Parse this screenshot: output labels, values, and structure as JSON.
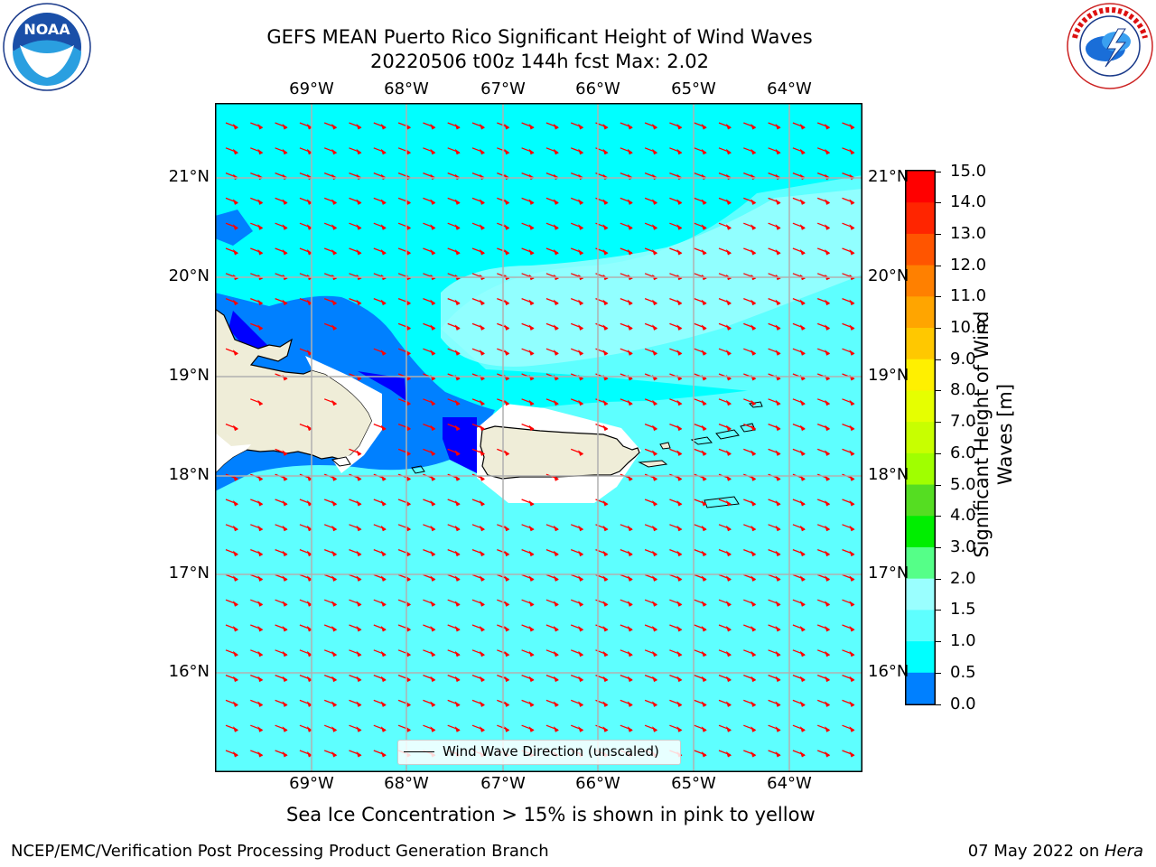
{
  "title": {
    "line1": "GEFS MEAN Puerto Rico Significant Height of Wind Waves",
    "line2": "20220506 t00z 144h fcst   Max: 2.02"
  },
  "map": {
    "lon_labels": [
      "69°W",
      "68°W",
      "67°W",
      "66°W",
      "65°W",
      "64°W"
    ],
    "lat_labels": [
      "21°N",
      "20°N",
      "19°N",
      "18°N",
      "17°N",
      "16°N"
    ],
    "colors": {
      "ocean_low": "#00ffff",
      "ocean_mid": "#5effff",
      "ocean_high": "#9affff",
      "deep_blue": "#0080ff",
      "blue": "#0000ff",
      "land": "#efedd8",
      "arrow": "#ff0000",
      "grid": "#b0b0b0"
    },
    "legend_label": "Wind Wave Direction (unscaled)"
  },
  "colorbar": {
    "label": "Significant Height of Wind Waves [m]",
    "label_line1": "Significant Height of Wind",
    "label_line2": "Waves [m]",
    "ticks": [
      "15.0",
      "14.0",
      "13.0",
      "12.0",
      "11.0",
      "10.0",
      "9.0",
      "8.0",
      "7.0",
      "6.0",
      "5.0",
      "4.0",
      "3.0",
      "2.0",
      "1.5",
      "1.0",
      "0.5",
      "0.0"
    ],
    "colors": [
      "#ff0000",
      "#ff2000",
      "#ff5000",
      "#ff8000",
      "#ffa000",
      "#ffc000",
      "#ffee00",
      "#fff700",
      "#e8ff00",
      "#c8ff00",
      "#a0ff00",
      "#44dd22",
      "#00ee00",
      "#00dd00",
      "#55ff88",
      "#9affff",
      "#5effff",
      "#00ffff",
      "#0080ff",
      "#0000ff"
    ]
  },
  "caption": "Sea Ice Concentration > 15% is shown in pink to yellow",
  "footer": {
    "left": "NCEP/EMC/Verification Post Processing Product Generation Branch",
    "right_date": "07 May 2022 on ",
    "right_host": "Hera"
  },
  "logos": {
    "noaa_text": "NOAA",
    "noaa_ring": "NATIONAL OCEANIC AND ATMOSPHERIC ADMINISTRATION · U.S. DEPARTMENT OF COMMERCE",
    "nws_ring": "NATIONAL WEATHER SERVICE"
  }
}
